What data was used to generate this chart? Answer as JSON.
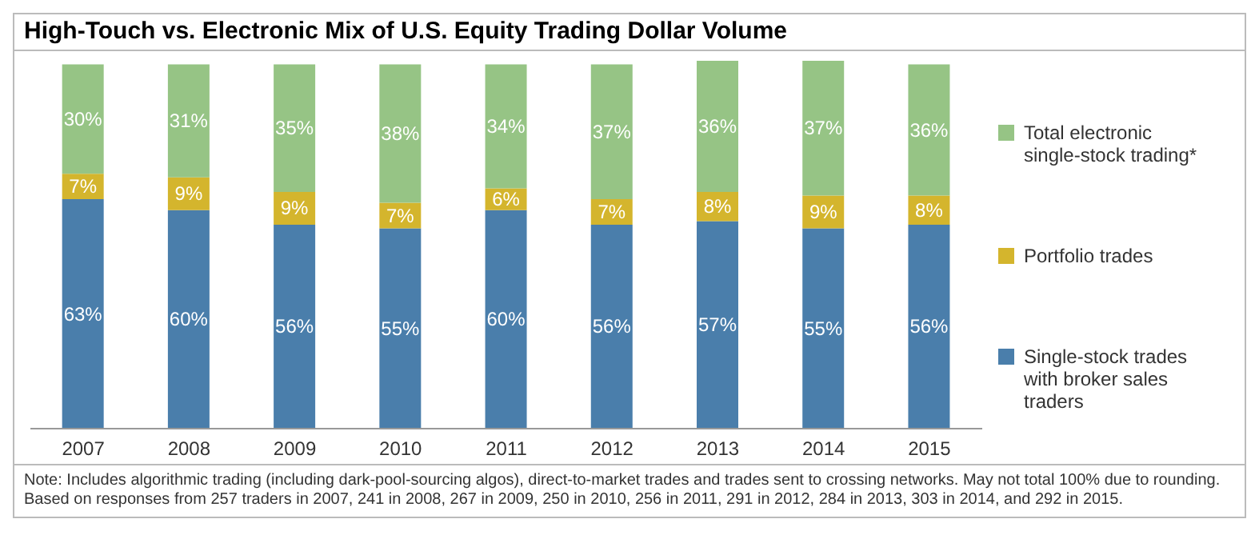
{
  "chart_data": {
    "type": "bar",
    "title": "High-Touch vs. Electronic Mix of U.S. Equity Trading Dollar Volume",
    "categories": [
      "2007",
      "2008",
      "2009",
      "2010",
      "2011",
      "2012",
      "2013",
      "2014",
      "2015"
    ],
    "stacked": true,
    "legend": "right",
    "series": [
      {
        "name": "Single-stock trades with broker sales traders",
        "color": "#4a7eab",
        "values": [
          63,
          60,
          56,
          55,
          60,
          56,
          57,
          55,
          56
        ],
        "value_labels": [
          "63%",
          "60%",
          "56%",
          "55%",
          "60%",
          "56%",
          "57%",
          "55%",
          "56%"
        ]
      },
      {
        "name": "Portfolio trades",
        "color": "#d4b52d",
        "values": [
          7,
          9,
          9,
          7,
          6,
          7,
          8,
          9,
          8
        ],
        "value_labels": [
          "7%",
          "9%",
          "9%",
          "7%",
          "6%",
          "7%",
          "8%",
          "9%",
          "8%"
        ]
      },
      {
        "name": "Total electronic single-stock trading*",
        "color": "#96c485",
        "values": [
          30,
          31,
          35,
          38,
          34,
          37,
          36,
          37,
          36
        ],
        "value_labels": [
          "30%",
          "31%",
          "35%",
          "38%",
          "34%",
          "37%",
          "36%",
          "37%",
          "36%"
        ]
      }
    ],
    "annotations": [
      "Note: Includes algorithmic trading (including dark-pool-sourcing algos), direct-to-market trades and trades sent to crossing networks. May not total 100% due to rounding.",
      "Based on responses from 257 traders in 2007, 241 in 2008, 267 in 2009, 250 in 2010, 256 in 2011, 291 in 2012, 284 in 2013, 303 in 2014, and 292 in 2015."
    ]
  }
}
